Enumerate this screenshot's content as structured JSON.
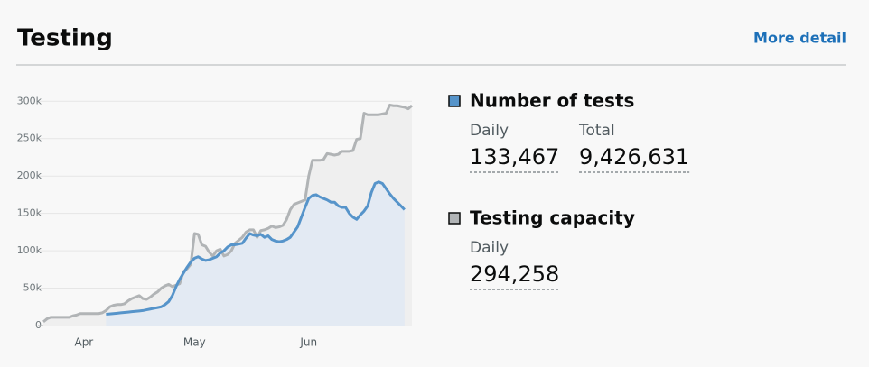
{
  "header": {
    "title": "Testing",
    "link": "More detail"
  },
  "panels": [
    {
      "stats": [
        {
          "label": "Daily",
          "value": "133,467"
        },
        {
          "label": "Total",
          "value": "9,426,631"
        }
      ]
    },
    {
      "stats": [
        {
          "label": "Daily",
          "value": "294,258"
        }
      ]
    }
  ],
  "chart_data": {
    "type": "area",
    "categories": [
      null,
      null,
      null,
      null,
      null,
      null,
      null,
      null,
      null,
      null,
      null,
      "Apr",
      null,
      null,
      null,
      null,
      null,
      null,
      null,
      null,
      null,
      null,
      null,
      null,
      null,
      null,
      null,
      null,
      null,
      null,
      null,
      null,
      null,
      null,
      null,
      null,
      null,
      null,
      null,
      null,
      null,
      "May",
      null,
      null,
      null,
      null,
      null,
      null,
      null,
      null,
      null,
      null,
      null,
      null,
      null,
      null,
      null,
      null,
      null,
      null,
      null,
      null,
      null,
      null,
      null,
      null,
      null,
      null,
      null,
      null,
      null,
      null,
      "Jun",
      null,
      null,
      null,
      null,
      null,
      null,
      null,
      null,
      null,
      null,
      null,
      null,
      null,
      null,
      null,
      null,
      null,
      null,
      null,
      null,
      null,
      null,
      null,
      null,
      null,
      null,
      null,
      null
    ],
    "series": [
      {
        "name": "Number of tests",
        "color": "#5694ca",
        "area_color": "#e3eaf3",
        "values": [
          null,
          null,
          null,
          null,
          null,
          null,
          null,
          null,
          null,
          null,
          null,
          null,
          null,
          null,
          null,
          null,
          null,
          15000,
          15500,
          16000,
          16500,
          17000,
          17500,
          18000,
          18500,
          19000,
          19500,
          20000,
          21000,
          22000,
          23000,
          24000,
          25000,
          28000,
          32000,
          40000,
          52000,
          62000,
          70000,
          78000,
          85000,
          90000,
          92000,
          89000,
          87000,
          88000,
          90000,
          92000,
          97000,
          100000,
          105000,
          108000,
          108000,
          109000,
          110000,
          117000,
          123000,
          121000,
          120000,
          122000,
          118000,
          120000,
          115000,
          113000,
          112000,
          113000,
          115000,
          118000,
          125000,
          132000,
          145000,
          158000,
          170000,
          174000,
          175000,
          172000,
          170000,
          168000,
          165000,
          165000,
          160000,
          158000,
          158000,
          150000,
          145000,
          142000,
          148000,
          153000,
          160000,
          178000,
          190000,
          192000,
          190000,
          183000,
          176000,
          170000,
          165000,
          160000,
          155000,
          null,
          null
        ]
      },
      {
        "name": "Testing capacity",
        "color": "#b1b4b6",
        "area_color": "#efefef",
        "values": [
          5000,
          9000,
          11000,
          11000,
          11000,
          11000,
          11000,
          11000,
          13000,
          14000,
          16000,
          16000,
          16000,
          16000,
          16000,
          16000,
          17000,
          20000,
          25000,
          27000,
          28000,
          28000,
          29000,
          33000,
          36000,
          38000,
          40000,
          36000,
          35000,
          38000,
          42000,
          45000,
          50000,
          53000,
          55000,
          52000,
          54000,
          56000,
          72000,
          76000,
          82000,
          123000,
          122000,
          108000,
          106000,
          98000,
          93000,
          100000,
          102000,
          93000,
          95000,
          100000,
          110000,
          114000,
          118000,
          125000,
          128000,
          128000,
          118000,
          127000,
          128000,
          130000,
          133000,
          131000,
          132000,
          134000,
          142000,
          155000,
          162000,
          164000,
          166000,
          168000,
          200000,
          221000,
          221000,
          221000,
          222000,
          230000,
          229000,
          228000,
          229000,
          233000,
          233000,
          233000,
          234000,
          249000,
          250000,
          284000,
          282000,
          282000,
          282000,
          282000,
          283000,
          284000,
          295000,
          294000,
          294000,
          293000,
          292000,
          290000,
          294258
        ]
      }
    ],
    "ylim": [
      0,
      310000
    ],
    "yticks": [
      0,
      {
        "value": 50000,
        "label": "50k"
      },
      {
        "value": 100000,
        "label": "100k"
      },
      {
        "value": 150000,
        "label": "150k"
      },
      {
        "value": 200000,
        "label": "200k"
      },
      {
        "value": 250000,
        "label": "250k"
      },
      {
        "value": 300000,
        "label": "300k"
      }
    ],
    "grid": true
  }
}
